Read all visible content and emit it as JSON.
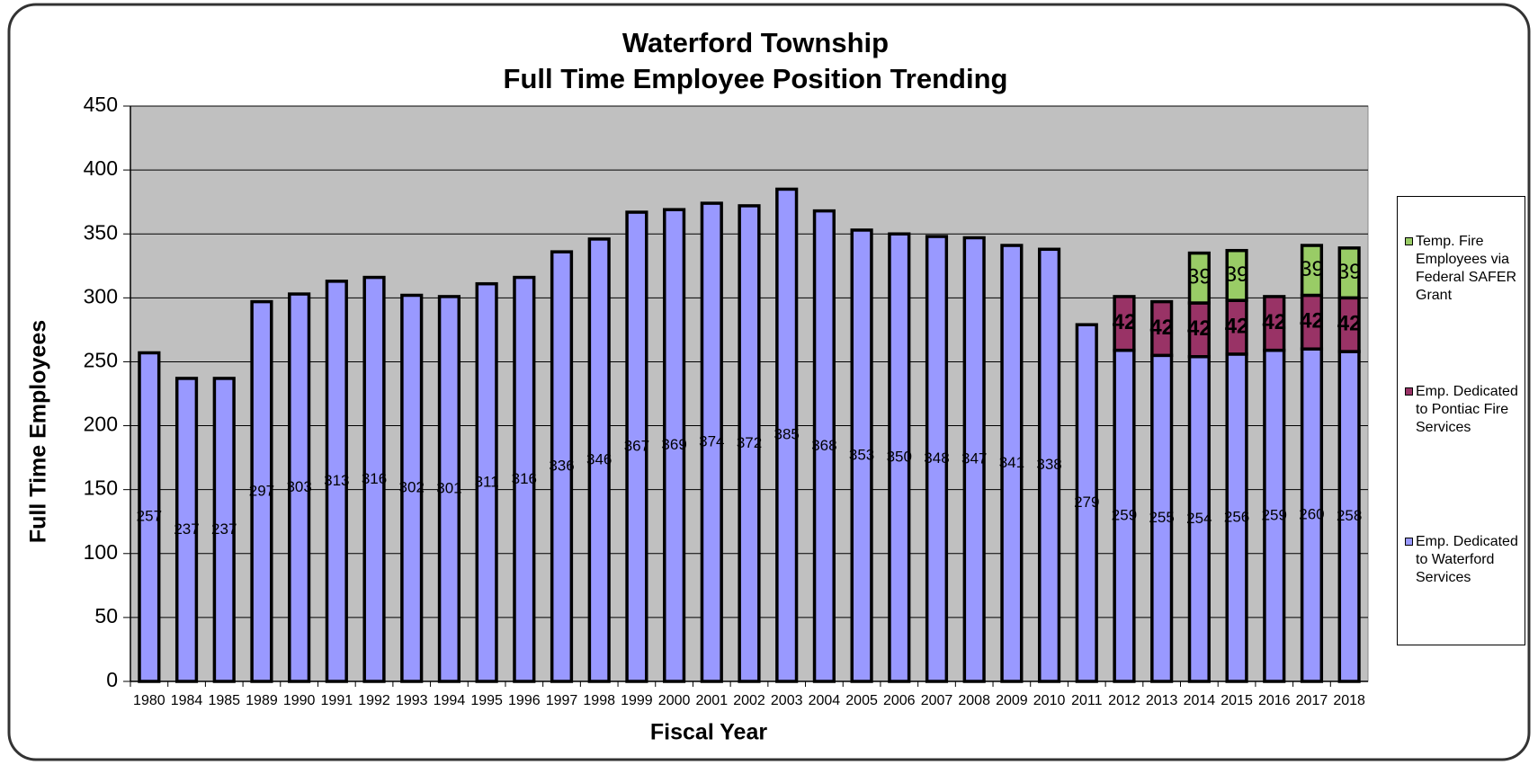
{
  "chart_data": {
    "type": "stacked_bar",
    "title": "Waterford Township",
    "subtitle": "Full Time Employee Position Trending",
    "x_label": "Fiscal Year",
    "y_label": "Full Time Employees",
    "categories": [
      "1980",
      "1984",
      "1985",
      "1989",
      "1990",
      "1991",
      "1992",
      "1993",
      "1994",
      "1995",
      "1996",
      "1997",
      "1998",
      "1999",
      "2000",
      "2001",
      "2002",
      "2003",
      "2004",
      "2005",
      "2006",
      "2007",
      "2008",
      "2009",
      "2010",
      "2011",
      "2012",
      "2013",
      "2014",
      "2015",
      "2016",
      "2017",
      "2018"
    ],
    "series": [
      {
        "name": "Emp. Dedicated to Waterford Services",
        "color": "#9999ff",
        "values": [
          257,
          237,
          237,
          297,
          303,
          313,
          316,
          302,
          301,
          311,
          316,
          336,
          346,
          367,
          369,
          374,
          372,
          385,
          368,
          353,
          350,
          348,
          347,
          341,
          338,
          279,
          259,
          255,
          254,
          256,
          259,
          260,
          258
        ]
      },
      {
        "name": "Emp. Dedicated to Pontiac Fire Services",
        "color": "#993366",
        "values": [
          null,
          null,
          null,
          null,
          null,
          null,
          null,
          null,
          null,
          null,
          null,
          null,
          null,
          null,
          null,
          null,
          null,
          null,
          null,
          null,
          null,
          null,
          null,
          null,
          null,
          null,
          42,
          42,
          42,
          42,
          42,
          42,
          42
        ]
      },
      {
        "name": "Temp. Fire Employees via Federal SAFER Grant",
        "color": "#99cc66",
        "values": [
          null,
          null,
          null,
          null,
          null,
          null,
          null,
          null,
          null,
          null,
          null,
          null,
          null,
          null,
          null,
          null,
          null,
          null,
          null,
          null,
          null,
          null,
          null,
          null,
          null,
          null,
          null,
          null,
          39,
          39,
          null,
          39,
          39
        ]
      }
    ],
    "ylim": [
      0,
      450
    ],
    "yticks": [
      0,
      50,
      100,
      150,
      200,
      250,
      300,
      350,
      400,
      450
    ],
    "grid": true,
    "plot_background": "#c0c0c0",
    "legend": "right"
  }
}
